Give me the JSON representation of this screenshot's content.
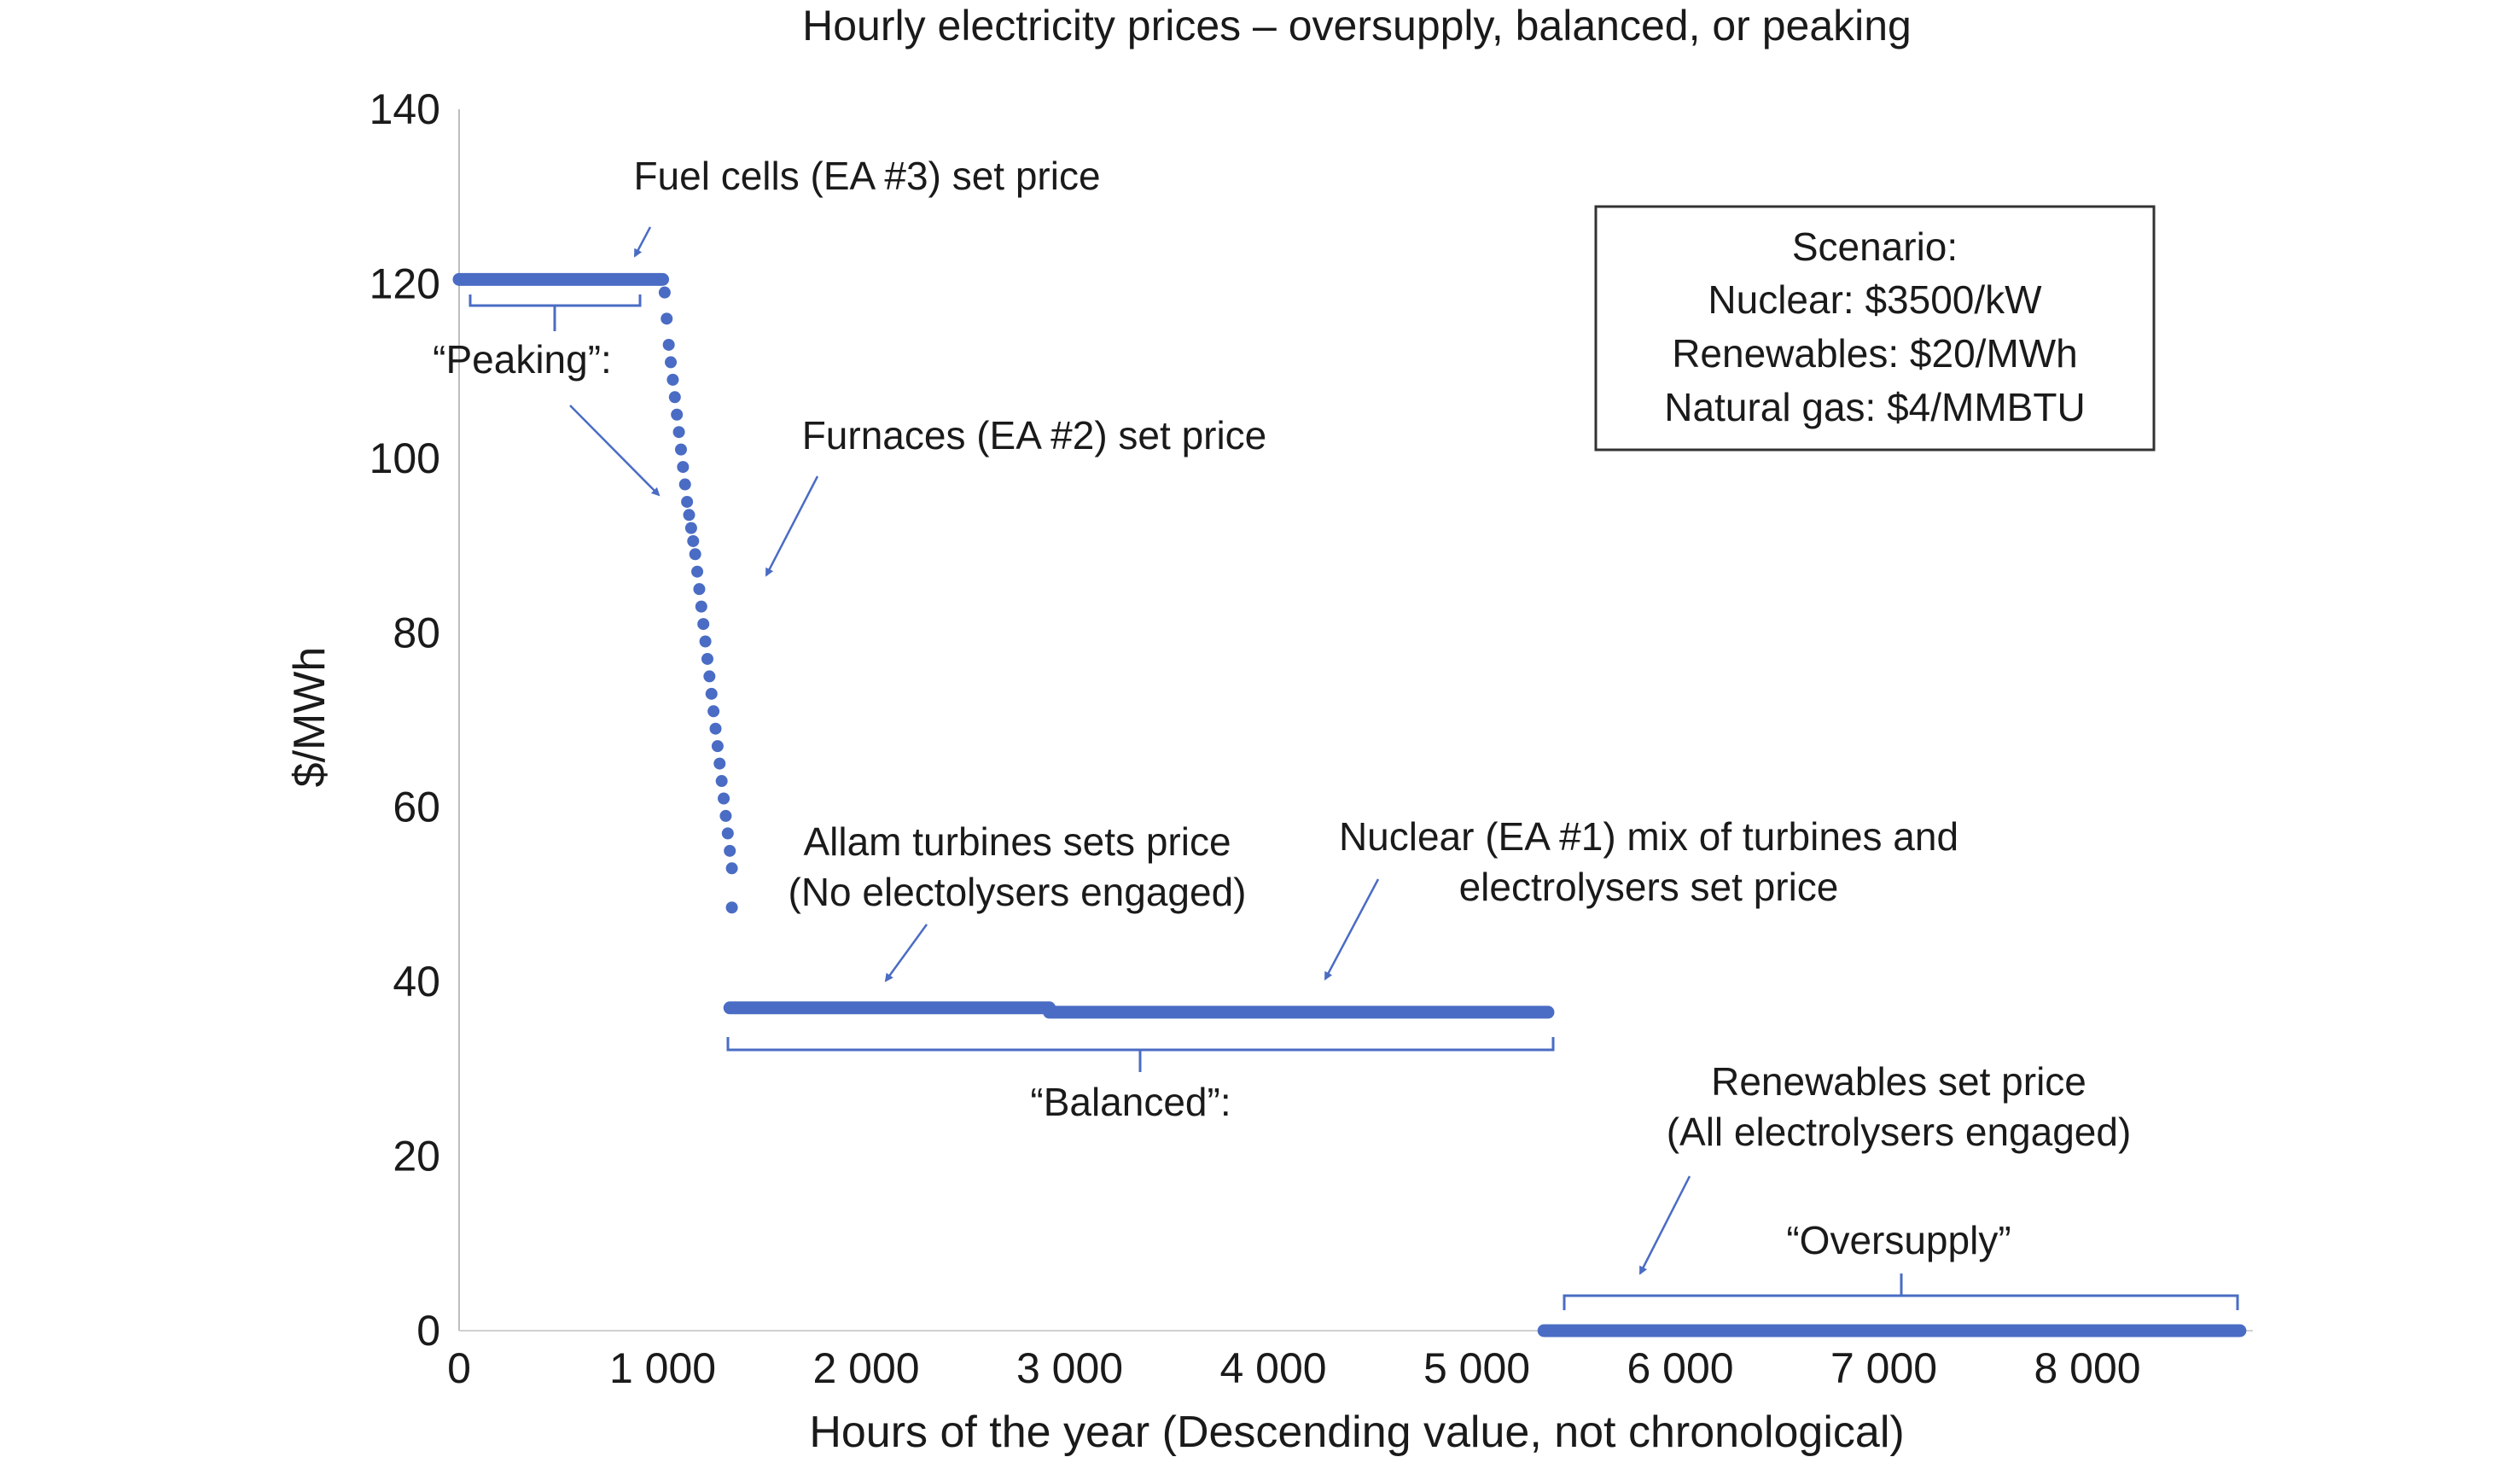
{
  "chart_data": {
    "type": "scatter",
    "title": "Hourly electricity prices – oversupply, balanced, or peaking",
    "xlabel": "Hours of the year (Descending value, not chronological)",
    "ylabel": "$/MWh",
    "xlim": [
      0,
      8760
    ],
    "ylim": [
      0,
      140
    ],
    "x_ticks": [
      {
        "value": 0,
        "label": "0"
      },
      {
        "value": 1000,
        "label": "1 000"
      },
      {
        "value": 2000,
        "label": "2 000"
      },
      {
        "value": 3000,
        "label": "3 000"
      },
      {
        "value": 4000,
        "label": "4 000"
      },
      {
        "value": 5000,
        "label": "5 000"
      },
      {
        "value": 6000,
        "label": "6 000"
      },
      {
        "value": 7000,
        "label": "7 000"
      },
      {
        "value": 8000,
        "label": "8 000"
      }
    ],
    "y_ticks": [
      {
        "value": 0,
        "label": "0"
      },
      {
        "value": 20,
        "label": "20"
      },
      {
        "value": 40,
        "label": "40"
      },
      {
        "value": 60,
        "label": "60"
      },
      {
        "value": 80,
        "label": "80"
      },
      {
        "value": 100,
        "label": "100"
      },
      {
        "value": 120,
        "label": "120"
      },
      {
        "value": 140,
        "label": "140"
      }
    ],
    "grid": false,
    "marker_color": "#4a6cc4",
    "annotation_color": "#4a6cc4",
    "series": [
      {
        "segments": [
          {
            "from": [
              0,
              120.5
            ],
            "to": [
              1000,
              120.5
            ]
          },
          {
            "from": [
              1330,
              37
            ],
            "to": [
              2900,
              37
            ]
          },
          {
            "from": [
              2900,
              36.5
            ],
            "to": [
              5350,
              36.5
            ]
          },
          {
            "from": [
              5330,
              0
            ],
            "to": [
              8750,
              0
            ]
          }
        ],
        "points": [
          [
            1000,
            120.5
          ],
          [
            1010,
            119
          ],
          [
            1020,
            116
          ],
          [
            1030,
            113
          ],
          [
            1040,
            111
          ],
          [
            1050,
            109
          ],
          [
            1060,
            107
          ],
          [
            1070,
            105
          ],
          [
            1080,
            103
          ],
          [
            1090,
            101
          ],
          [
            1100,
            99
          ],
          [
            1110,
            97
          ],
          [
            1120,
            95
          ],
          [
            1130,
            93.5
          ],
          [
            1140,
            92
          ],
          [
            1150,
            90.5
          ],
          [
            1160,
            89
          ],
          [
            1170,
            87
          ],
          [
            1180,
            85
          ],
          [
            1190,
            83
          ],
          [
            1200,
            81
          ],
          [
            1210,
            79
          ],
          [
            1220,
            77
          ],
          [
            1230,
            75
          ],
          [
            1240,
            73
          ],
          [
            1250,
            71
          ],
          [
            1260,
            69
          ],
          [
            1270,
            67
          ],
          [
            1280,
            65
          ],
          [
            1290,
            63
          ],
          [
            1300,
            61
          ],
          [
            1310,
            59
          ],
          [
            1320,
            57
          ],
          [
            1330,
            55
          ],
          [
            1340,
            53
          ],
          [
            1340,
            48.5
          ]
        ]
      }
    ],
    "annotations": [
      {
        "text": "Fuel cells (EA #3) set price"
      },
      {
        "text": "“Peaking”:"
      },
      {
        "text": "Furnaces (EA #2) set price"
      },
      {
        "text": "Allam turbines sets price"
      },
      {
        "text": "(No electolysers engaged)"
      },
      {
        "text": "Nuclear (EA #1) mix of turbines and"
      },
      {
        "text": "electrolysers set price"
      },
      {
        "text": "“Balanced”:"
      },
      {
        "text": "Renewables set price"
      },
      {
        "text": "(All electrolysers engaged)"
      },
      {
        "text": "“Oversupply”"
      }
    ],
    "scenario_box": {
      "lines": [
        "Scenario:",
        "Nuclear: $3500/kW",
        "Renewables: $20/MWh",
        "Natural gas: $4/MMBTU"
      ]
    }
  }
}
